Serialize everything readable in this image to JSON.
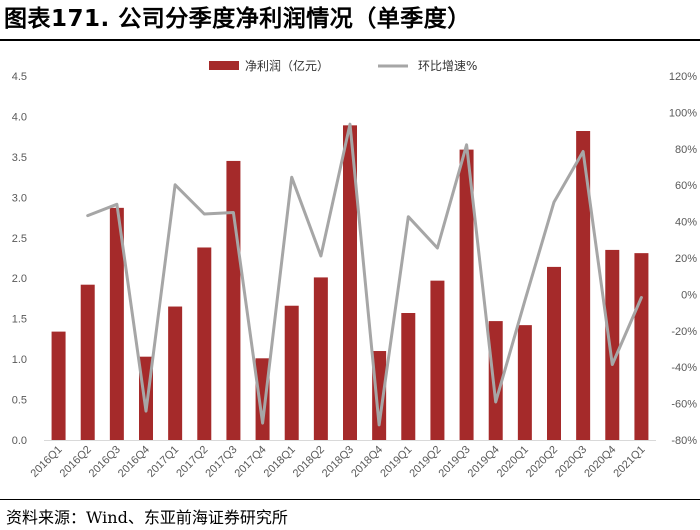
{
  "figure": {
    "title": "图表171. 公司分季度净利润情况（单季度）",
    "source": "资料来源：Wind、东亚前海证券研究所"
  },
  "chart_data": {
    "type": "bar",
    "categories": [
      "2016Q1",
      "2016Q2",
      "2016Q3",
      "2016Q4",
      "2017Q1",
      "2017Q2",
      "2017Q3",
      "2017Q4",
      "2018Q1",
      "2018Q2",
      "2018Q3",
      "2018Q4",
      "2019Q1",
      "2019Q2",
      "2019Q3",
      "2019Q4",
      "2020Q1",
      "2020Q2",
      "2020Q3",
      "2020Q4",
      "2021Q1"
    ],
    "series": [
      {
        "name": "净利润（亿元）",
        "type": "bar",
        "axis": "left",
        "color": "#A52A2A",
        "values": [
          1.34,
          1.92,
          2.87,
          1.03,
          1.65,
          2.38,
          3.45,
          1.01,
          1.66,
          2.01,
          3.89,
          1.1,
          1.57,
          1.97,
          3.59,
          1.47,
          1.42,
          2.14,
          3.82,
          2.35,
          2.31
        ]
      },
      {
        "name": "环比增速%",
        "type": "line",
        "axis": "right",
        "color": "#A6A6A6",
        "values": [
          null,
          43.3,
          49.5,
          -64.1,
          60.2,
          44.2,
          45.0,
          -70.7,
          64.4,
          21.1,
          93.5,
          -71.7,
          42.7,
          25.5,
          82.2,
          -59.1,
          -3.4,
          50.7,
          78.5,
          -38.5,
          -1.7
        ]
      }
    ],
    "ylim_left": [
      0,
      4.5
    ],
    "yticks_left": [
      "0.0",
      "0.5",
      "1.0",
      "1.5",
      "2.0",
      "2.5",
      "3.0",
      "3.5",
      "4.0",
      "4.5"
    ],
    "ylim_right": [
      -80,
      120
    ],
    "yticks_right": [
      "-80%",
      "-60%",
      "-40%",
      "-20%",
      "0%",
      "20%",
      "40%",
      "60%",
      "80%",
      "100%",
      "120%"
    ],
    "legend_position": "top-center",
    "grid": false
  }
}
